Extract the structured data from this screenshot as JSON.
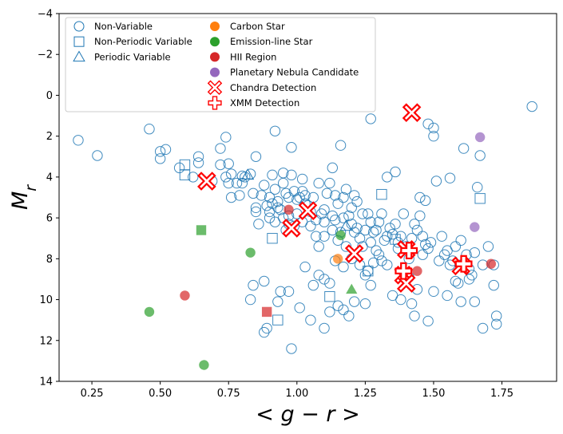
{
  "chart_data": {
    "type": "scatter",
    "xlabel": "< g − r >",
    "ylabel": "M_r",
    "xlim": [
      0.13,
      1.95
    ],
    "ylim": [
      14,
      -4
    ],
    "y_inverted": true,
    "x_ticks": [
      "0.25",
      "0.50",
      "0.75",
      "1.00",
      "1.25",
      "1.50",
      "1.75"
    ],
    "x_tick_values": [
      0.25,
      0.5,
      0.75,
      1.0,
      1.25,
      1.5,
      1.75
    ],
    "y_ticks": [
      "−4",
      "−2",
      "0",
      "2",
      "4",
      "6",
      "8",
      "10",
      "12",
      "14"
    ],
    "y_tick_values": [
      -4,
      -2,
      0,
      2,
      4,
      6,
      8,
      10,
      12,
      14
    ],
    "legend_position": "upper-left",
    "colors": {
      "blue": "#1f77b4",
      "orange": "#ff7f0e",
      "green": "#2ca02c",
      "red": "#d62728",
      "purple": "#9467bd",
      "detection": "#ff0000"
    },
    "legend": [
      {
        "label": "Non-Variable",
        "marker": "circle-open",
        "color": "#1f77b4"
      },
      {
        "label": "Non-Periodic Variable",
        "marker": "square-open",
        "color": "#1f77b4"
      },
      {
        "label": "Periodic Variable",
        "marker": "triangle-open",
        "color": "#1f77b4"
      },
      {
        "label": "Carbon Star",
        "marker": "circle-filled",
        "color": "#ff7f0e"
      },
      {
        "label": "Emission-line Star",
        "marker": "circle-filled",
        "color": "#2ca02c"
      },
      {
        "label": "HII Region",
        "marker": "circle-filled",
        "color": "#d62728"
      },
      {
        "label": "Planetary Nebula Candidate",
        "marker": "circle-filled",
        "color": "#9467bd"
      },
      {
        "label": "Chandra Detection",
        "marker": "x-open",
        "color": "#ff0000"
      },
      {
        "label": "XMM Detection",
        "marker": "plus-open",
        "color": "#ff0000"
      }
    ],
    "series": [
      {
        "name": "Non-Variable",
        "marker": "circle-open",
        "color": "#1f77b4",
        "points": [
          [
            0.2,
            2.2
          ],
          [
            0.27,
            2.95
          ],
          [
            0.46,
            1.65
          ],
          [
            0.5,
            2.75
          ],
          [
            0.5,
            3.1
          ],
          [
            0.52,
            2.65
          ],
          [
            0.57,
            3.55
          ],
          [
            0.62,
            4.0
          ],
          [
            0.64,
            3.0
          ],
          [
            0.64,
            3.3
          ],
          [
            0.69,
            4.2
          ],
          [
            0.72,
            2.6
          ],
          [
            0.72,
            3.4
          ],
          [
            0.74,
            2.05
          ],
          [
            0.74,
            4.0
          ],
          [
            0.75,
            3.35
          ],
          [
            0.75,
            4.3
          ],
          [
            0.76,
            3.85
          ],
          [
            0.76,
            5.0
          ],
          [
            0.78,
            4.3
          ],
          [
            0.79,
            4.9
          ],
          [
            0.8,
            3.95
          ],
          [
            0.8,
            4.3
          ],
          [
            0.81,
            4.0
          ],
          [
            0.83,
            3.85
          ],
          [
            0.84,
            4.8
          ],
          [
            0.85,
            3.0
          ],
          [
            0.85,
            5.5
          ],
          [
            0.86,
            6.3
          ],
          [
            0.87,
            4.9
          ],
          [
            0.88,
            4.4
          ],
          [
            0.89,
            5.4
          ],
          [
            0.9,
            5.0
          ],
          [
            0.9,
            5.7
          ],
          [
            0.91,
            3.9
          ],
          [
            0.92,
            1.75
          ],
          [
            0.92,
            4.6
          ],
          [
            0.93,
            5.2
          ],
          [
            0.94,
            5.6
          ],
          [
            0.95,
            3.8
          ],
          [
            0.95,
            4.3
          ],
          [
            0.96,
            4.8
          ],
          [
            0.97,
            5.0
          ],
          [
            0.97,
            5.9
          ],
          [
            0.98,
            3.9
          ],
          [
            0.98,
            2.55
          ],
          [
            0.99,
            4.7
          ],
          [
            1.0,
            5.1
          ],
          [
            1.0,
            5.8
          ],
          [
            1.02,
            4.1
          ],
          [
            1.02,
            4.7
          ],
          [
            1.02,
            6.2
          ],
          [
            1.03,
            4.9
          ],
          [
            1.04,
            5.4
          ],
          [
            1.05,
            6.4
          ],
          [
            1.06,
            5.0
          ],
          [
            1.07,
            6.9
          ],
          [
            1.08,
            4.3
          ],
          [
            1.08,
            7.4
          ],
          [
            1.09,
            5.8
          ],
          [
            1.1,
            5.6
          ],
          [
            1.1,
            6.9
          ],
          [
            1.11,
            4.8
          ],
          [
            1.12,
            4.3
          ],
          [
            1.13,
            3.55
          ],
          [
            1.13,
            5.9
          ],
          [
            1.14,
            4.9
          ],
          [
            1.14,
            6.1
          ],
          [
            1.15,
            7.1
          ],
          [
            1.15,
            5.3
          ],
          [
            1.16,
            2.45
          ],
          [
            1.17,
            5.0
          ],
          [
            1.17,
            6.0
          ],
          [
            1.18,
            4.6
          ],
          [
            1.19,
            5.9
          ],
          [
            1.2,
            6.3
          ],
          [
            1.2,
            5.5
          ],
          [
            1.21,
            4.9
          ],
          [
            1.22,
            6.5
          ],
          [
            1.22,
            5.2
          ],
          [
            1.23,
            7.0
          ],
          [
            1.24,
            7.4
          ],
          [
            1.25,
            6.6
          ],
          [
            1.26,
            5.8
          ],
          [
            1.27,
            1.15
          ],
          [
            1.27,
            7.2
          ],
          [
            1.28,
            6.7
          ],
          [
            1.29,
            7.6
          ],
          [
            1.3,
            6.2
          ],
          [
            1.31,
            5.8
          ],
          [
            1.32,
            7.1
          ],
          [
            1.33,
            4.0
          ],
          [
            1.34,
            6.5
          ],
          [
            1.35,
            6.8
          ],
          [
            1.36,
            3.75
          ],
          [
            1.37,
            7.5
          ],
          [
            1.38,
            6.9
          ],
          [
            1.39,
            5.8
          ],
          [
            1.4,
            7.4
          ],
          [
            1.41,
            8.0
          ],
          [
            1.42,
            7.0
          ],
          [
            1.44,
            6.6
          ],
          [
            1.45,
            5.0
          ],
          [
            1.46,
            6.9
          ],
          [
            1.47,
            5.15
          ],
          [
            1.48,
            7.5
          ],
          [
            1.49,
            7.2
          ],
          [
            1.5,
            1.6
          ],
          [
            1.5,
            2.0
          ],
          [
            1.48,
            1.4
          ],
          [
            1.51,
            4.2
          ],
          [
            1.52,
            8.1
          ],
          [
            1.54,
            7.8
          ],
          [
            1.56,
            4.05
          ],
          [
            1.57,
            8.1
          ],
          [
            1.58,
            9.1
          ],
          [
            1.6,
            7.1
          ],
          [
            1.61,
            2.6
          ],
          [
            1.62,
            7.8
          ],
          [
            1.63,
            8.5
          ],
          [
            1.65,
            7.7
          ],
          [
            1.66,
            4.5
          ],
          [
            1.67,
            2.95
          ],
          [
            1.68,
            8.3
          ],
          [
            1.7,
            7.4
          ],
          [
            1.72,
            8.3
          ],
          [
            1.72,
            9.3
          ],
          [
            1.73,
            10.8
          ],
          [
            1.73,
            11.2
          ],
          [
            1.68,
            11.4
          ],
          [
            1.6,
            10.1
          ],
          [
            1.63,
            9.0
          ],
          [
            1.65,
            10.1
          ],
          [
            1.59,
            9.2
          ],
          [
            1.86,
            0.55
          ],
          [
            1.55,
            9.8
          ],
          [
            1.5,
            9.6
          ],
          [
            1.48,
            11.05
          ],
          [
            1.43,
            10.8
          ],
          [
            1.42,
            10.2
          ],
          [
            1.38,
            10.0
          ],
          [
            1.35,
            9.8
          ],
          [
            1.33,
            8.3
          ],
          [
            1.3,
            7.8
          ],
          [
            1.27,
            9.3
          ],
          [
            1.26,
            8.6
          ],
          [
            1.25,
            10.2
          ],
          [
            1.21,
            10.1
          ],
          [
            1.19,
            10.8
          ],
          [
            1.17,
            10.5
          ],
          [
            1.15,
            10.3
          ],
          [
            1.12,
            10.6
          ],
          [
            1.1,
            11.4
          ],
          [
            1.1,
            9.0
          ],
          [
            1.08,
            8.8
          ],
          [
            1.06,
            9.3
          ],
          [
            1.05,
            11.0
          ],
          [
            1.01,
            10.4
          ],
          [
            0.98,
            12.4
          ],
          [
            0.97,
            9.6
          ],
          [
            0.94,
            9.6
          ],
          [
            0.93,
            10.1
          ],
          [
            0.88,
            9.1
          ],
          [
            0.89,
            11.4
          ],
          [
            0.88,
            11.6
          ],
          [
            0.84,
            9.3
          ],
          [
            0.83,
            10.0
          ],
          [
            0.85,
            5.7
          ],
          [
            0.92,
            6.2
          ],
          [
            0.96,
            6.6
          ],
          [
            1.03,
            8.4
          ],
          [
            1.12,
            9.2
          ],
          [
            1.14,
            8.1
          ],
          [
            1.17,
            8.4
          ],
          [
            1.2,
            8.0
          ],
          [
            1.23,
            8.3
          ],
          [
            1.25,
            8.8
          ],
          [
            1.28,
            8.2
          ],
          [
            1.31,
            8.1
          ],
          [
            1.37,
            7.2
          ],
          [
            1.41,
            8.9
          ],
          [
            1.44,
            9.5
          ],
          [
            1.46,
            7.8
          ],
          [
            1.53,
            6.9
          ],
          [
            1.56,
            8.3
          ],
          [
            1.58,
            7.4
          ],
          [
            1.64,
            8.8
          ],
          [
            1.6,
            8.3
          ],
          [
            1.55,
            7.6
          ],
          [
            1.47,
            7.3
          ],
          [
            1.43,
            6.3
          ],
          [
            1.45,
            5.9
          ],
          [
            1.36,
            6.3
          ],
          [
            1.33,
            6.9
          ],
          [
            1.29,
            6.6
          ],
          [
            1.27,
            6.2
          ],
          [
            1.24,
            5.8
          ],
          [
            1.21,
            6.7
          ],
          [
            1.18,
            7.4
          ],
          [
            1.16,
            6.7
          ],
          [
            1.13,
            6.6
          ],
          [
            1.1,
            6.2
          ],
          [
            1.07,
            6.1
          ],
          [
            1.05,
            5.7
          ],
          [
            1.03,
            5.3
          ],
          [
            1.01,
            5.0
          ],
          [
            0.99,
            6.4
          ],
          [
            0.97,
            6.3
          ],
          [
            0.95,
            6.0
          ],
          [
            0.93,
            5.5
          ],
          [
            0.91,
            5.3
          ],
          [
            0.9,
            6.0
          ]
        ]
      },
      {
        "name": "Non-Periodic Variable",
        "marker": "square-open",
        "color": "#1f77b4",
        "points": [
          [
            0.59,
            3.4
          ],
          [
            0.59,
            3.9
          ],
          [
            0.91,
            7.0
          ],
          [
            0.93,
            11.0
          ],
          [
            1.12,
            9.85
          ],
          [
            1.26,
            8.6
          ],
          [
            1.31,
            4.85
          ],
          [
            1.36,
            7.05
          ],
          [
            1.67,
            5.05
          ]
        ]
      },
      {
        "name": "Periodic Variable",
        "marker": "triangle-open",
        "color": "#1f77b4",
        "points": [
          [
            0.82,
            3.9
          ],
          [
            1.18,
            6.4
          ]
        ]
      },
      {
        "name": "Carbon Star",
        "marker": "circle-filled",
        "color": "#ff7f0e",
        "points": [
          [
            1.15,
            8.0
          ]
        ]
      },
      {
        "name": "Emission-line Star",
        "marker": "circle-filled",
        "color": "#2ca02c",
        "points": [
          [
            0.46,
            10.6
          ],
          [
            0.66,
            13.2
          ],
          [
            0.83,
            7.7
          ],
          [
            1.16,
            6.85
          ]
        ]
      },
      {
        "name": "Emission-line Star (square)",
        "marker": "square-filled",
        "color": "#2ca02c",
        "points": [
          [
            0.65,
            6.6
          ]
        ]
      },
      {
        "name": "Emission-line Star (triangle)",
        "marker": "triangle-filled",
        "color": "#2ca02c",
        "points": [
          [
            1.2,
            9.5
          ]
        ]
      },
      {
        "name": "HII Region",
        "marker": "circle-filled",
        "color": "#d62728",
        "points": [
          [
            0.59,
            9.8
          ],
          [
            0.97,
            5.6
          ],
          [
            1.44,
            8.6
          ],
          [
            1.71,
            8.25
          ]
        ]
      },
      {
        "name": "HII Region (square)",
        "marker": "square-filled",
        "color": "#d62728",
        "points": [
          [
            0.89,
            10.6
          ]
        ]
      },
      {
        "name": "Planetary Nebula Candidate",
        "marker": "circle-filled",
        "color": "#9467bd",
        "points": [
          [
            1.67,
            2.05
          ],
          [
            1.65,
            6.45
          ]
        ]
      },
      {
        "name": "Chandra Detection",
        "marker": "x-open",
        "color": "#ff0000",
        "points": [
          [
            0.67,
            4.2
          ],
          [
            0.98,
            6.5
          ],
          [
            1.04,
            5.65
          ],
          [
            1.21,
            7.75
          ],
          [
            1.4,
            7.55
          ],
          [
            1.42,
            0.85
          ],
          [
            1.6,
            8.35
          ],
          [
            1.39,
            8.8
          ],
          [
            1.4,
            9.2
          ]
        ]
      },
      {
        "name": "XMM Detection",
        "marker": "plus-open",
        "color": "#ff0000",
        "points": [
          [
            1.41,
            7.6
          ],
          [
            1.39,
            8.6
          ],
          [
            1.61,
            8.25
          ]
        ]
      }
    ]
  }
}
